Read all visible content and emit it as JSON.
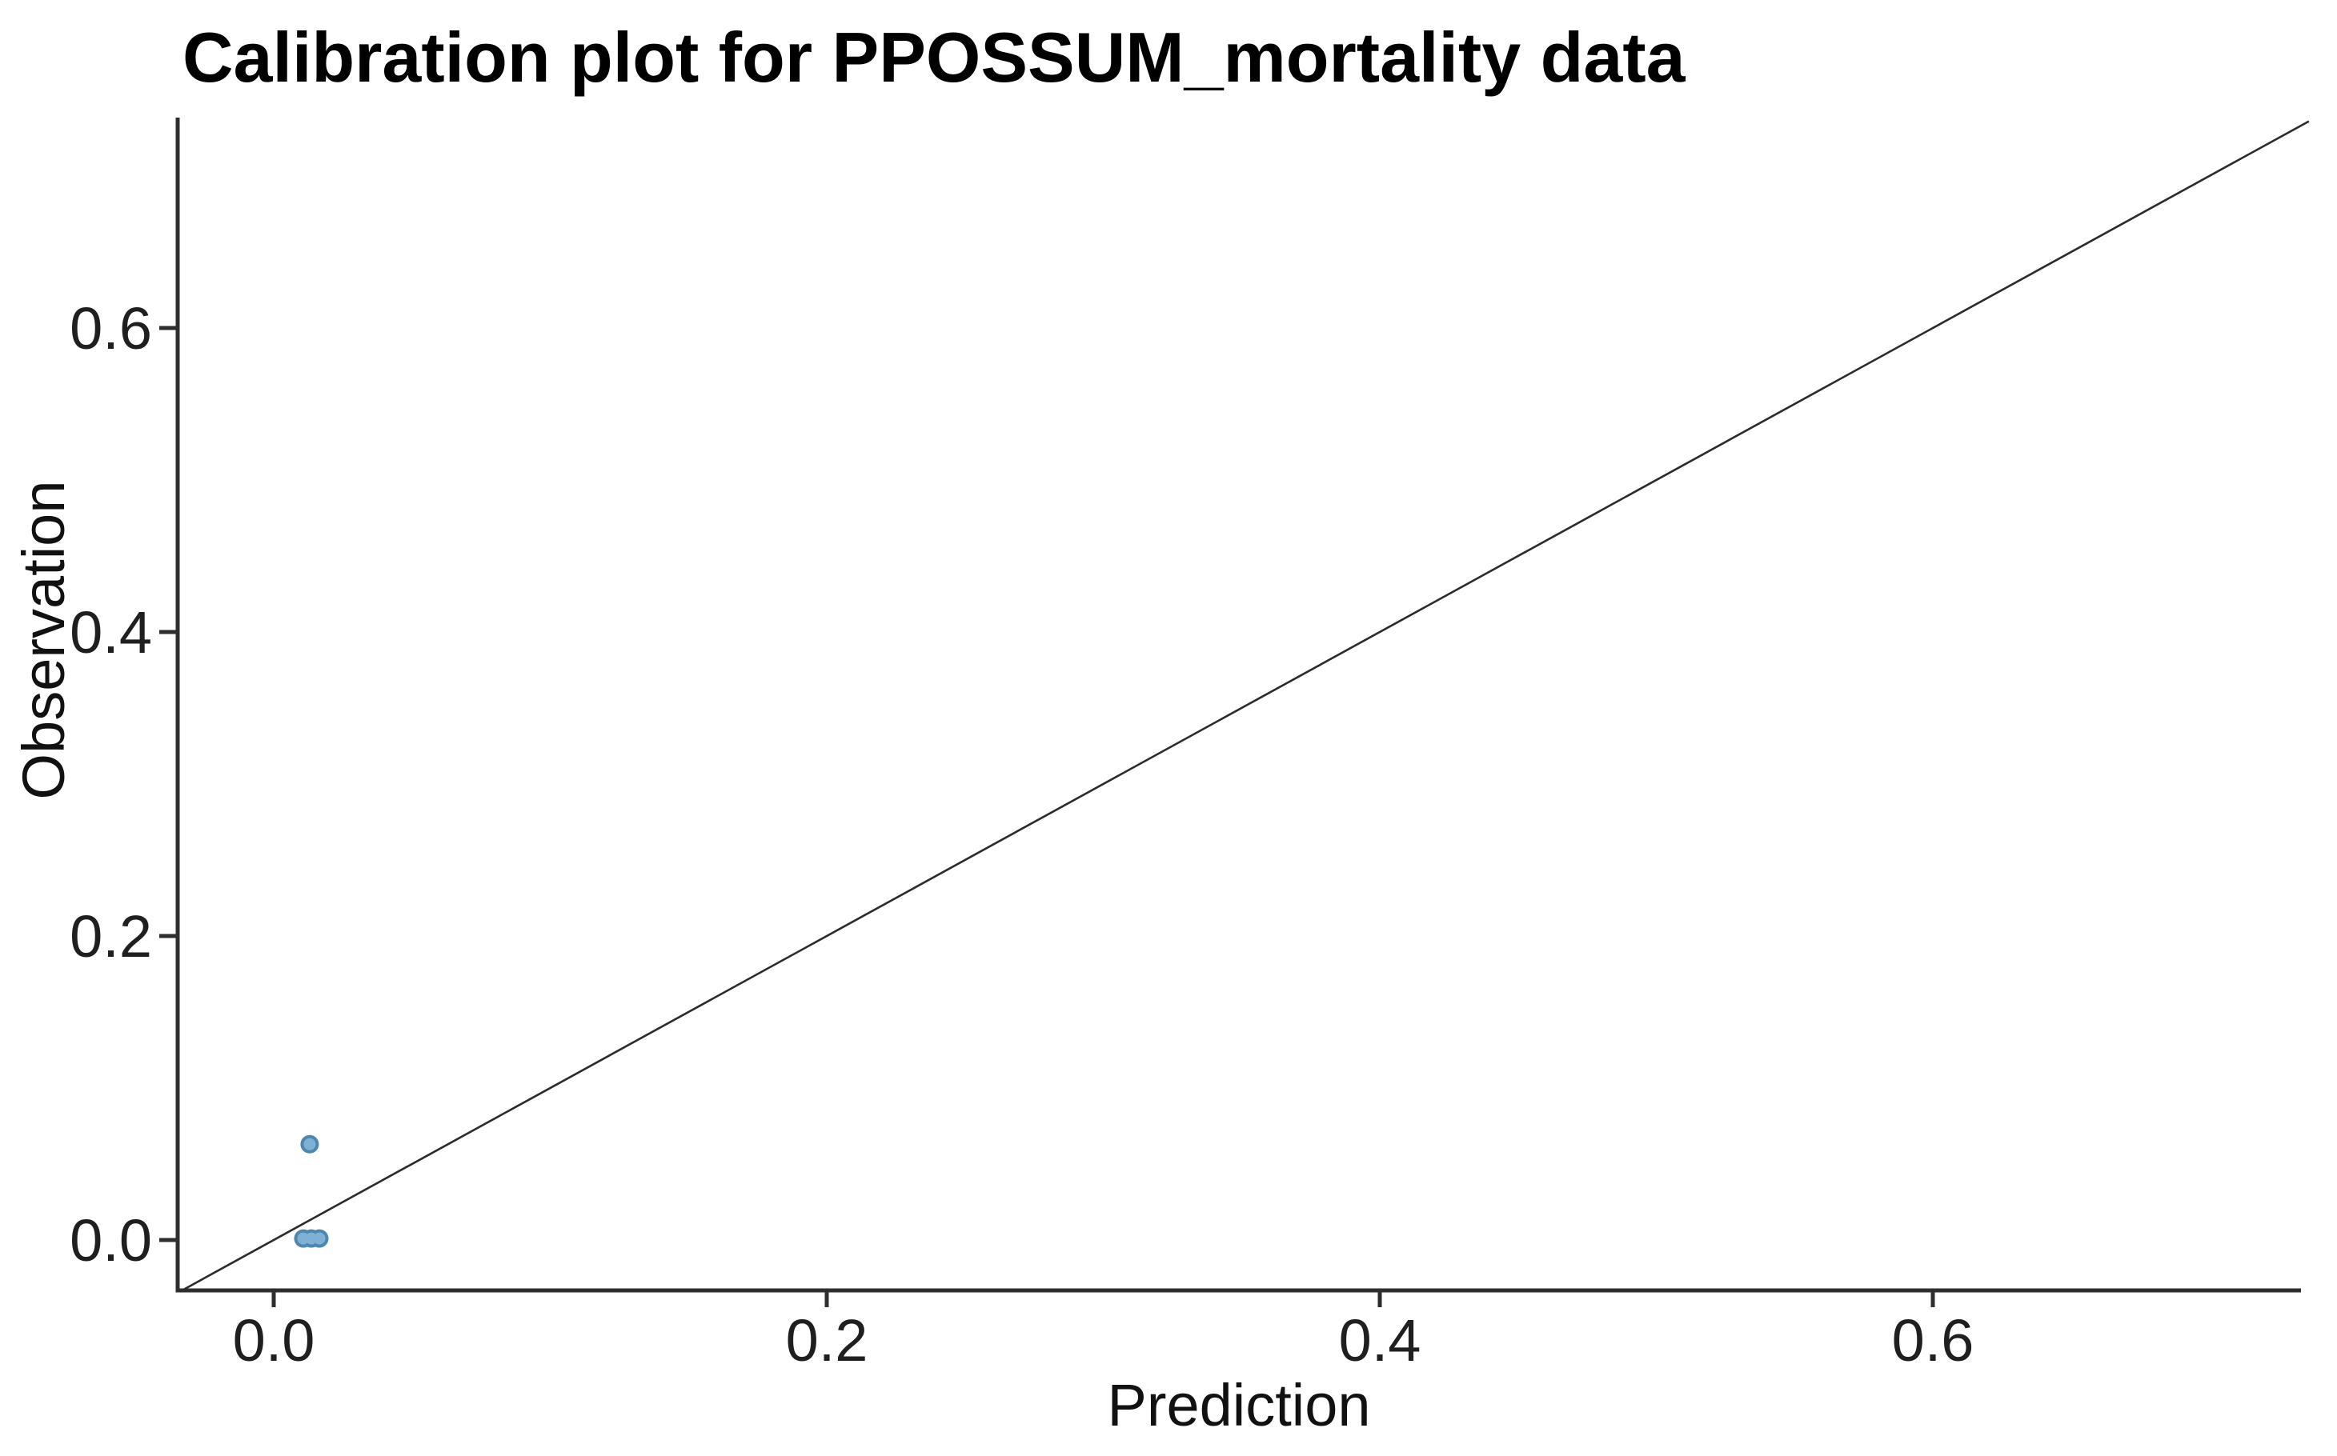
{
  "page": {
    "background_color": "#ffffff"
  },
  "chart_data": {
    "type": "scatter",
    "title": "Calibration plot for PPOSSUM_mortality data",
    "xlabel": "Prediction",
    "ylabel": "Observation",
    "x_ticks": [
      0.0,
      0.2,
      0.4,
      0.6
    ],
    "y_ticks": [
      0.0,
      0.2,
      0.4,
      0.6
    ],
    "tick_decimals": 1,
    "xlim": [
      -0.035,
      0.735
    ],
    "ylim": [
      -0.033,
      0.737
    ],
    "grid": false,
    "legend": "none",
    "points": [
      {
        "x": 0.013,
        "y": 0.063
      },
      {
        "x": 0.0107,
        "y": 0.001
      },
      {
        "x": 0.0136,
        "y": 0.001
      },
      {
        "x": 0.0165,
        "y": 0.001
      }
    ],
    "reference_line": {
      "type": "identity",
      "slope": 1,
      "intercept": 0,
      "from": -0.034,
      "to": 0.736
    },
    "colors": {
      "point_fill": "#7fb1d5",
      "point_edge": "#4d86ae",
      "reference_line": "#2b2b2b",
      "axis_line": "#2e2e2e",
      "tick_mark": "#2e2e2e"
    }
  }
}
